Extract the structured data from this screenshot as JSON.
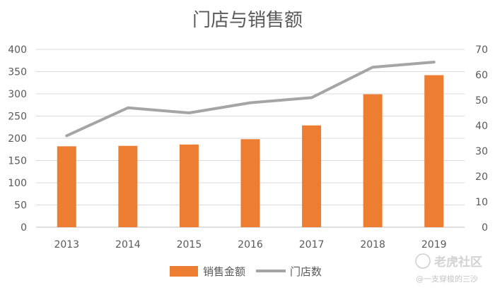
{
  "chart_data": {
    "type": "bar",
    "title": "门店与销售额",
    "categories": [
      "2013",
      "2014",
      "2015",
      "2016",
      "2017",
      "2018",
      "2019"
    ],
    "series": [
      {
        "name": "销售金额",
        "kind": "bar",
        "axis": "left",
        "values": [
          182,
          183,
          186,
          198,
          229,
          299,
          342
        ],
        "color": "#ED7D31"
      },
      {
        "name": "门店数",
        "kind": "line",
        "axis": "right",
        "values": [
          36,
          47,
          45,
          49,
          51,
          63,
          65
        ],
        "color": "#A5A5A5"
      }
    ],
    "y_left": {
      "min": 0,
      "max": 400,
      "step": 50,
      "ticks": [
        "0",
        "50",
        "100",
        "150",
        "200",
        "250",
        "300",
        "350",
        "400"
      ]
    },
    "y_right": {
      "min": 0,
      "max": 70,
      "step": 10,
      "ticks": [
        "0",
        "10",
        "20",
        "30",
        "40",
        "50",
        "60",
        "70"
      ]
    },
    "grid": true,
    "legend_position": "bottom"
  },
  "watermark": {
    "main": "老虎社区",
    "sub": "@一支穿梭的三沙"
  }
}
